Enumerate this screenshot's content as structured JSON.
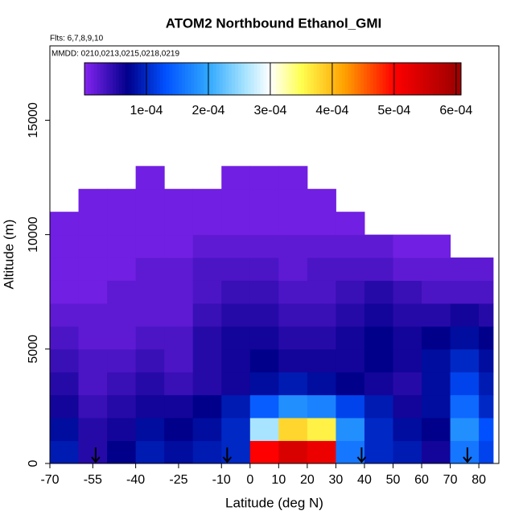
{
  "chart_data": {
    "type": "heatmap",
    "title": "ATOM2 Northbound Ethanol_GMI",
    "annotations": [
      "Flts: 6,7,8,9,10",
      "MMDD: 0210,0213,0215,0218,0219"
    ],
    "x_label": "Latitude (deg N)",
    "y_label": "Altitude (m)",
    "xlim": [
      -70,
      87
    ],
    "xticks": [
      -70,
      -55,
      -40,
      -25,
      -10,
      0,
      10,
      20,
      30,
      40,
      50,
      60,
      70,
      80
    ],
    "ylim": [
      0,
      18250
    ],
    "yticks": [
      0,
      5000,
      10000,
      15000
    ],
    "xbins": [
      -70,
      -60,
      -50,
      -40,
      -30,
      -20,
      -10,
      0,
      10,
      20,
      30,
      40,
      50,
      60,
      70,
      80,
      85
    ],
    "ybins": [
      0,
      1000,
      2000,
      3000,
      4000,
      5000,
      6000,
      7000,
      8000,
      9000,
      10000,
      11000,
      12000,
      13000
    ],
    "z": [
      [
        9e-05,
        5e-05,
        7e-05,
        9e-05,
        8e-05,
        9e-05,
        0.0001,
        0.0005,
        0.00054,
        0.00052,
        0.00016,
        0.0001,
        9e-05,
        6e-05,
        0.00016,
        0.00012
      ],
      [
        8e-05,
        5e-05,
        6e-05,
        8e-05,
        7e-05,
        8e-05,
        0.0001,
        0.00026,
        0.00038,
        0.00036,
        0.00018,
        0.0001,
        8e-05,
        7e-05,
        0.00018,
        0.00013
      ],
      [
        6e-05,
        4e-05,
        5e-05,
        6e-05,
        6e-05,
        7e-05,
        9e-05,
        0.00014,
        0.00018,
        0.00017,
        0.00012,
        9e-05,
        6e-05,
        8e-05,
        0.00015,
        0.0001
      ],
      [
        5e-05,
        3e-05,
        4e-05,
        5e-05,
        4e-05,
        5e-05,
        6e-05,
        8e-05,
        9e-05,
        8e-05,
        7e-05,
        6e-05,
        5e-05,
        8e-05,
        0.00012,
        9e-05
      ],
      [
        4e-05,
        3e-05,
        3e-05,
        4e-05,
        3e-05,
        5e-05,
        6e-05,
        7e-05,
        6e-05,
        6e-05,
        6e-05,
        7e-05,
        6e-05,
        8e-05,
        0.0001,
        8e-05
      ],
      [
        3e-05,
        2e-05,
        2e-05,
        3e-05,
        3e-05,
        5e-05,
        6e-05,
        6e-05,
        5e-05,
        5e-05,
        6e-05,
        7e-05,
        6e-05,
        7e-05,
        8e-05,
        7e-05
      ],
      [
        2e-05,
        2e-05,
        2e-05,
        2e-05,
        2e-05,
        4e-05,
        5e-05,
        5e-05,
        4e-05,
        4e-05,
        5e-05,
        6e-05,
        5e-05,
        5e-05,
        6e-05,
        5e-05
      ],
      [
        1e-05,
        1e-05,
        2e-05,
        2e-05,
        2e-05,
        3e-05,
        4e-05,
        4e-05,
        3e-05,
        3e-05,
        4e-05,
        5e-05,
        4e-05,
        3e-05,
        3e-05,
        3e-05
      ],
      [
        1e-05,
        1e-05,
        1e-05,
        2e-05,
        2e-05,
        3e-05,
        3e-05,
        3e-05,
        2e-05,
        3e-05,
        3e-05,
        3e-05,
        2e-05,
        2e-05,
        2e-05,
        2e-05
      ],
      [
        1e-05,
        1e-05,
        1e-05,
        1e-05,
        1e-05,
        2e-05,
        2e-05,
        2e-05,
        2e-05,
        2e-05,
        2e-05,
        2e-05,
        1e-05,
        1e-05,
        null,
        null
      ],
      [
        1e-05,
        1e-05,
        1e-05,
        1e-05,
        1e-05,
        1e-05,
        1e-05,
        1e-05,
        1e-05,
        1e-05,
        1e-05,
        null,
        null,
        null,
        null,
        null
      ],
      [
        null,
        1e-05,
        1e-05,
        1e-05,
        1e-05,
        1e-05,
        1e-05,
        1e-05,
        1e-05,
        1e-05,
        null,
        null,
        null,
        null,
        null,
        null
      ],
      [
        null,
        null,
        null,
        1e-05,
        null,
        null,
        1e-05,
        1e-05,
        1e-05,
        null,
        null,
        null,
        null,
        null,
        null,
        null
      ]
    ],
    "zlim": [
      0,
      0.000608
    ],
    "zticks": [
      {
        "value": 0.0001,
        "label": "1e-04"
      },
      {
        "value": 0.0002,
        "label": "2e-04"
      },
      {
        "value": 0.0003,
        "label": "3e-04"
      },
      {
        "value": 0.0004,
        "label": "4e-04"
      },
      {
        "value": 0.0005,
        "label": "5e-04"
      },
      {
        "value": 0.0006,
        "label": "6e-04"
      }
    ],
    "colorscale": [
      [
        0,
        "#8424f0"
      ],
      [
        7e-05,
        "#00008b"
      ],
      [
        0.00013,
        "#0050ff"
      ],
      [
        0.0002,
        "#30a8ff"
      ],
      [
        0.00026,
        "#a8e4ff"
      ],
      [
        0.0003,
        "#ffffff"
      ],
      [
        0.00035,
        "#ffff50"
      ],
      [
        0.00042,
        "#ffa000"
      ],
      [
        0.0005,
        "#ff0000"
      ],
      [
        0.0006,
        "#a00000"
      ]
    ],
    "arrows_x": [
      -54,
      -8,
      39,
      76
    ]
  }
}
